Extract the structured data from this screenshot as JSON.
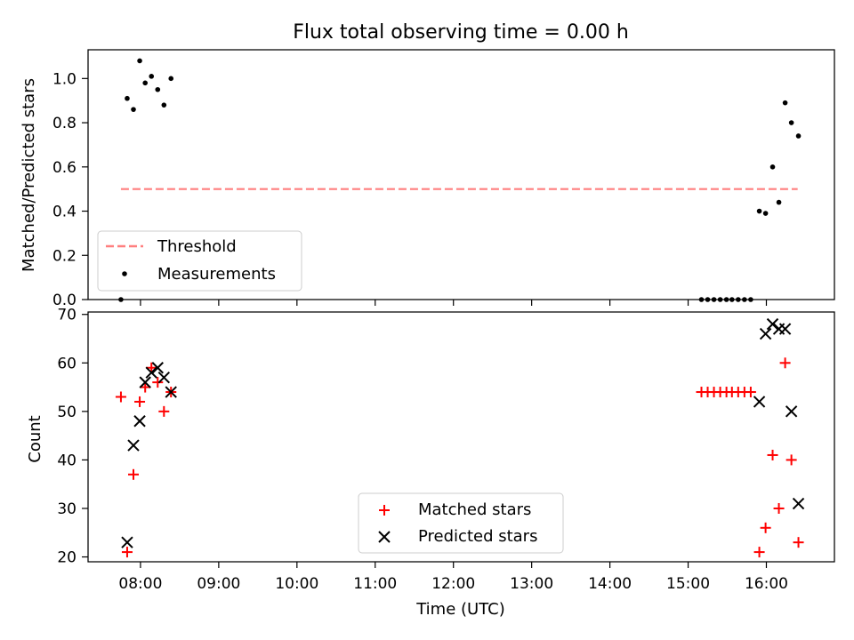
{
  "colors": {
    "threshold": "#ff7f7f",
    "measurements": "#000000",
    "matched": "#ff0000",
    "predicted": "#000000"
  },
  "chart_data": [
    {
      "type": "scatter",
      "title": "Flux total observing time = 0.00 h",
      "xlabel": "",
      "ylabel": "Matched/Predicted stars",
      "xlim": [
        7.33,
        16.87
      ],
      "ylim": [
        0.0,
        1.13
      ],
      "yticks": [
        0.0,
        0.2,
        0.4,
        0.6,
        0.8,
        1.0
      ],
      "ytick_labels": [
        "0.0",
        "0.2",
        "0.4",
        "0.6",
        "0.8",
        "1.0"
      ],
      "grid": false,
      "legend": {
        "position": "lower-left",
        "entries": [
          "Threshold",
          "Measurements"
        ]
      },
      "series": [
        {
          "name": "Threshold",
          "style": "dashed-line",
          "x": [
            7.75,
            16.4
          ],
          "y": [
            0.5,
            0.5
          ]
        },
        {
          "name": "Measurements",
          "style": "dot",
          "x": [
            7.75,
            7.83,
            7.91,
            7.99,
            8.06,
            8.14,
            8.22,
            8.3,
            8.39,
            15.17,
            15.25,
            15.33,
            15.41,
            15.49,
            15.56,
            15.64,
            15.72,
            15.8,
            15.91,
            15.99,
            16.08,
            16.16,
            16.24,
            16.32,
            16.41
          ],
          "y": [
            0.0,
            0.91,
            0.86,
            1.08,
            0.98,
            1.01,
            0.95,
            0.88,
            1.0,
            0.0,
            0.0,
            0.0,
            0.0,
            0.0,
            0.0,
            0.0,
            0.0,
            0.0,
            0.4,
            0.39,
            0.6,
            0.44,
            0.89,
            0.8,
            0.74
          ]
        }
      ]
    },
    {
      "type": "scatter",
      "title": "",
      "xlabel": "Time (UTC)",
      "ylabel": "Count",
      "xlim": [
        7.33,
        16.87
      ],
      "ylim": [
        19,
        70.5
      ],
      "yticks": [
        20,
        30,
        40,
        50,
        60,
        70
      ],
      "ytick_labels": [
        "20",
        "30",
        "40",
        "50",
        "60",
        "70"
      ],
      "xticks": [
        8,
        9,
        10,
        11,
        12,
        13,
        14,
        15,
        16
      ],
      "xtick_labels": [
        "08:00",
        "09:00",
        "10:00",
        "11:00",
        "12:00",
        "13:00",
        "14:00",
        "15:00",
        "16:00"
      ],
      "grid": false,
      "legend": {
        "position": "lower-center",
        "entries": [
          "Matched stars",
          "Predicted stars"
        ]
      },
      "series": [
        {
          "name": "Matched stars",
          "style": "plus",
          "x": [
            7.75,
            7.83,
            7.91,
            7.99,
            8.06,
            8.14,
            8.22,
            8.3,
            8.39,
            15.17,
            15.25,
            15.33,
            15.41,
            15.49,
            15.56,
            15.64,
            15.72,
            15.8,
            15.91,
            15.99,
            16.08,
            16.16,
            16.24,
            16.32,
            16.41
          ],
          "y": [
            53,
            21,
            37,
            52,
            55,
            59,
            56,
            50,
            54,
            54,
            54,
            54,
            54,
            54,
            54,
            54,
            54,
            54,
            21,
            26,
            41,
            30,
            60,
            40,
            23
          ]
        },
        {
          "name": "Predicted stars",
          "style": "cross",
          "x": [
            7.83,
            7.91,
            7.99,
            8.06,
            8.14,
            8.22,
            8.3,
            8.39,
            15.91,
            15.99,
            16.08,
            16.16,
            16.24,
            16.32,
            16.41
          ],
          "y": [
            23,
            43,
            48,
            56,
            58,
            59,
            57,
            54,
            52,
            66,
            68,
            67,
            67,
            50,
            31
          ]
        }
      ]
    }
  ]
}
